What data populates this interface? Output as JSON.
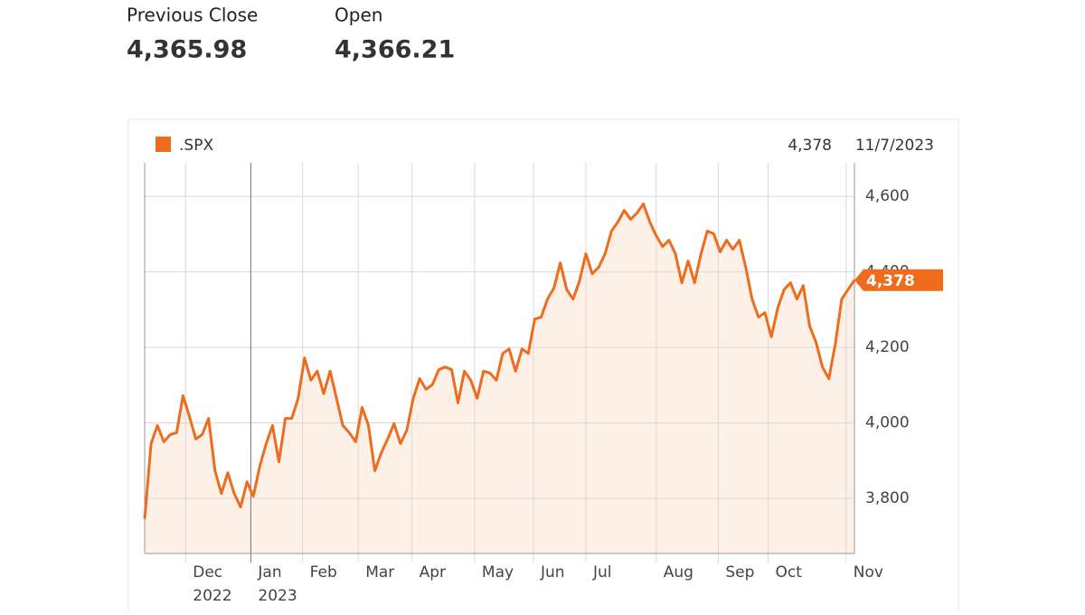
{
  "stats": [
    {
      "label": "Previous Close",
      "value": "4,365.98"
    },
    {
      "label": "Open",
      "value": "4,366.21"
    }
  ],
  "chart_data": {
    "type": "area",
    "series_name": ".SPX",
    "color": "#ee6c1e",
    "fill": "#fdf0e6",
    "current": {
      "value": 4378,
      "label": "4,378",
      "date": "11/7/2023"
    },
    "values": [
      3746,
      3945,
      3993,
      3950,
      3969,
      3974,
      4072,
      4017,
      3957,
      3969,
      4012,
      3873,
      3813,
      3868,
      3813,
      3777,
      3844,
      3806,
      3885,
      3945,
      3993,
      3897,
      4012,
      4012,
      4065,
      4172,
      4113,
      4137,
      4077,
      4137,
      4065,
      3993,
      3974,
      3950,
      4041,
      3993,
      3873,
      3921,
      3957,
      3998,
      3945,
      3981,
      4065,
      4117,
      4089,
      4101,
      4141,
      4148,
      4141,
      4053,
      4137,
      4113,
      4065,
      4137,
      4132,
      4113,
      4184,
      4196,
      4137,
      4196,
      4184,
      4275,
      4280,
      4328,
      4357,
      4424,
      4353,
      4328,
      4376,
      4448,
      4395,
      4412,
      4448,
      4508,
      4532,
      4563,
      4539,
      4556,
      4580,
      4532,
      4496,
      4467,
      4484,
      4448,
      4371,
      4429,
      4371,
      4448,
      4508,
      4501,
      4453,
      4484,
      4460,
      4484,
      4412,
      4328,
      4280,
      4292,
      4228,
      4304,
      4353,
      4371,
      4328,
      4364,
      4256,
      4213,
      4148,
      4117,
      4208,
      4328,
      4353,
      4378
    ],
    "xlim": [
      0,
      111
    ],
    "ylim": [
      3654,
      4689
    ],
    "yticks": [
      {
        "value": 3800,
        "label": "3,800"
      },
      {
        "value": 4000,
        "label": "4,000"
      },
      {
        "value": 4200,
        "label": "4,200"
      },
      {
        "value": 4400,
        "label": "4,400"
      },
      {
        "value": 4600,
        "label": "4,600"
      }
    ],
    "xticks": [
      {
        "value": 6.4,
        "label": "Dec",
        "year": "2022"
      },
      {
        "value": 16.6,
        "label": "Jan",
        "year": "2023"
      },
      {
        "value": 24.7,
        "label": "Feb"
      },
      {
        "value": 33.4,
        "label": "Mar"
      },
      {
        "value": 41.8,
        "label": "Apr"
      },
      {
        "value": 51.6,
        "label": "May"
      },
      {
        "value": 60.8,
        "label": "Jun"
      },
      {
        "value": 69,
        "label": "Jul"
      },
      {
        "value": 80,
        "label": "Aug"
      },
      {
        "value": 89.7,
        "label": "Sep"
      },
      {
        "value": 97.5,
        "label": "Oct"
      },
      {
        "value": 109.7,
        "label": "Nov"
      }
    ],
    "grid": true
  }
}
